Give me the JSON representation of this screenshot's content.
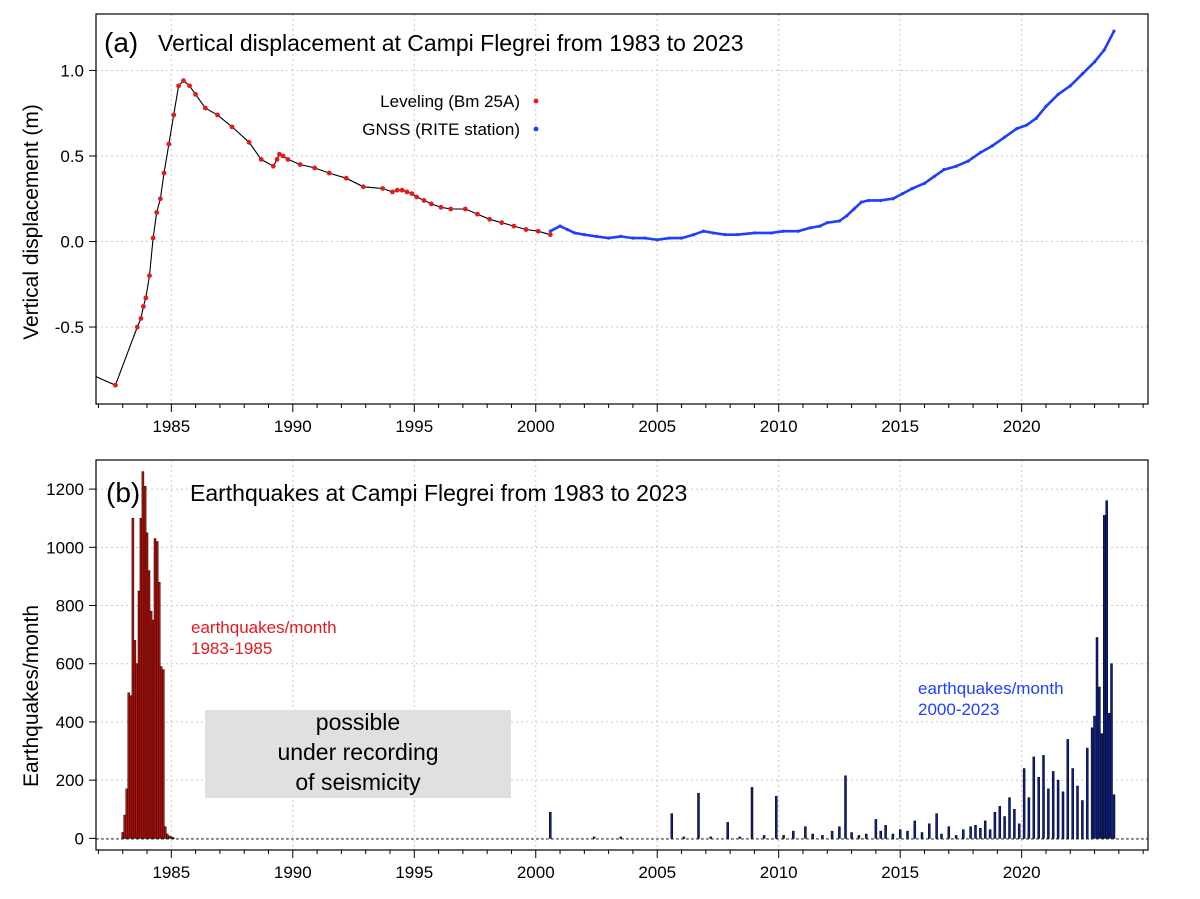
{
  "chart_data": [
    {
      "type": "line",
      "panel_letter": "(a)",
      "title": "Vertical displacement at Campi Flegrei from 1983 to 2023",
      "xlabel": "",
      "ylabel": "Vertical displacement (m)",
      "xlim": [
        1981.9,
        2025.2
      ],
      "ylim": [
        -0.95,
        1.33
      ],
      "x_ticks": [
        1985,
        1990,
        1995,
        2000,
        2005,
        2010,
        2015,
        2020
      ],
      "y_ticks": [
        -0.5,
        0.0,
        0.5,
        1.0
      ],
      "y_tick_labels": [
        "-0.5",
        "0.0",
        "0.5",
        "1.0"
      ],
      "grid": true,
      "legend_position": "top-center",
      "series": [
        {
          "name": "Leveling (Bm 25A)",
          "color": "#e41a1c",
          "marker": "dot",
          "connector_color": "#000000",
          "x": [
            1982.7,
            1983.6,
            1983.75,
            1983.85,
            1983.95,
            1984.1,
            1984.25,
            1984.4,
            1984.55,
            1984.7,
            1984.9,
            1985.1,
            1985.3,
            1985.5,
            1985.75,
            1986.0,
            1986.4,
            1986.9,
            1987.5,
            1988.2,
            1988.7,
            1989.2,
            1989.35,
            1989.45,
            1989.6,
            1989.8,
            1990.3,
            1990.9,
            1991.5,
            1992.2,
            1992.9,
            1993.7,
            1994.1,
            1994.3,
            1994.5,
            1994.7,
            1994.9,
            1995.1,
            1995.4,
            1995.7,
            1996.1,
            1996.5,
            1997.1,
            1997.6,
            1998.1,
            1998.6,
            1999.1,
            1999.6,
            2000.1,
            2000.6
          ],
          "y": [
            -0.84,
            -0.5,
            -0.45,
            -0.38,
            -0.33,
            -0.2,
            0.02,
            0.17,
            0.25,
            0.4,
            0.57,
            0.74,
            0.91,
            0.94,
            0.91,
            0.86,
            0.78,
            0.74,
            0.67,
            0.58,
            0.48,
            0.44,
            0.48,
            0.51,
            0.5,
            0.48,
            0.45,
            0.43,
            0.4,
            0.37,
            0.32,
            0.31,
            0.29,
            0.3,
            0.3,
            0.29,
            0.28,
            0.26,
            0.24,
            0.22,
            0.2,
            0.19,
            0.19,
            0.16,
            0.13,
            0.11,
            0.09,
            0.07,
            0.06,
            0.04
          ]
        },
        {
          "name": "GNSS (RITE station)",
          "color": "#1f3fff",
          "marker": "dot",
          "x": [
            2000.6,
            2001.0,
            2001.3,
            2001.6,
            2002.0,
            2002.5,
            2003.0,
            2003.5,
            2004.0,
            2004.5,
            2005.0,
            2005.5,
            2006.0,
            2006.5,
            2006.9,
            2007.3,
            2007.8,
            2008.3,
            2009.0,
            2009.7,
            2010.2,
            2010.8,
            2011.3,
            2011.7,
            2012.0,
            2012.5,
            2012.8,
            2013.1,
            2013.4,
            2013.7,
            2014.2,
            2014.7,
            2015.1,
            2015.5,
            2016.0,
            2016.4,
            2016.8,
            2017.3,
            2017.8,
            2018.3,
            2018.8,
            2019.3,
            2019.8,
            2020.2,
            2020.6,
            2021.0,
            2021.5,
            2022.0,
            2022.5,
            2023.0,
            2023.4,
            2023.8
          ],
          "y": [
            0.06,
            0.09,
            0.07,
            0.05,
            0.04,
            0.03,
            0.02,
            0.03,
            0.02,
            0.02,
            0.01,
            0.02,
            0.02,
            0.04,
            0.06,
            0.05,
            0.04,
            0.04,
            0.05,
            0.05,
            0.06,
            0.06,
            0.08,
            0.09,
            0.11,
            0.12,
            0.15,
            0.19,
            0.23,
            0.24,
            0.24,
            0.25,
            0.28,
            0.31,
            0.34,
            0.38,
            0.42,
            0.44,
            0.47,
            0.52,
            0.56,
            0.61,
            0.66,
            0.68,
            0.72,
            0.79,
            0.86,
            0.91,
            0.98,
            1.05,
            1.12,
            1.23
          ]
        }
      ]
    },
    {
      "type": "bar",
      "panel_letter": "(b)",
      "title": "Earthquakes at Campi Flegrei from 1983 to 2023",
      "xlabel": "",
      "ylabel": "Earthquakes/month",
      "xlim": [
        1981.9,
        2025.2
      ],
      "ylim": [
        -40,
        1300
      ],
      "x_ticks": [
        1985,
        1990,
        1995,
        2000,
        2005,
        2010,
        2015,
        2020
      ],
      "y_ticks": [
        0,
        200,
        400,
        600,
        800,
        1000,
        1200
      ],
      "grid": true,
      "annotations": {
        "red_label_line1": "earthquakes/month",
        "red_label_line2": "1983-1985",
        "blue_label_line1": "earthquakes/month",
        "blue_label_line2": "2000-2023",
        "box_line1": "possible",
        "box_line2": "under recording",
        "box_line3": "of seismicity"
      },
      "series": [
        {
          "name": "earthquakes/month 1983-1985",
          "color": "#c0130e",
          "bar_width_years": 0.083,
          "x": [
            1983.0,
            1983.08,
            1983.17,
            1983.25,
            1983.33,
            1983.42,
            1983.5,
            1983.58,
            1983.67,
            1983.75,
            1983.83,
            1983.92,
            1984.0,
            1984.08,
            1984.17,
            1984.25,
            1984.33,
            1984.42,
            1984.5,
            1984.58,
            1984.67,
            1984.75,
            1984.83,
            1984.92,
            1985.0,
            1985.08
          ],
          "values": [
            20,
            80,
            170,
            500,
            490,
            1100,
            680,
            600,
            850,
            1100,
            1260,
            1210,
            1050,
            920,
            780,
            750,
            1030,
            1020,
            880,
            590,
            580,
            40,
            15,
            8,
            5,
            3
          ]
        },
        {
          "name": "earthquakes/month 2000-2023",
          "color": "#0c1f8f",
          "bar_width_years": 0.083,
          "x": [
            2000.6,
            2002.4,
            2003.5,
            2005.6,
            2006.1,
            2006.7,
            2007.2,
            2007.9,
            2008.4,
            2008.9,
            2009.4,
            2009.9,
            2010.2,
            2010.6,
            2011.1,
            2011.4,
            2011.8,
            2012.2,
            2012.5,
            2012.75,
            2013.0,
            2013.3,
            2013.6,
            2014.0,
            2014.2,
            2014.4,
            2014.7,
            2015.0,
            2015.3,
            2015.6,
            2015.9,
            2016.2,
            2016.5,
            2016.7,
            2017.0,
            2017.3,
            2017.6,
            2017.9,
            2018.1,
            2018.3,
            2018.5,
            2018.7,
            2018.9,
            2019.1,
            2019.3,
            2019.5,
            2019.7,
            2019.9,
            2020.1,
            2020.3,
            2020.5,
            2020.7,
            2020.9,
            2021.1,
            2021.3,
            2021.5,
            2021.7,
            2021.9,
            2022.1,
            2022.3,
            2022.5,
            2022.7,
            2022.9,
            2023.0,
            2023.1,
            2023.2,
            2023.3,
            2023.4,
            2023.5,
            2023.6,
            2023.7,
            2023.8
          ],
          "values": [
            90,
            5,
            5,
            85,
            5,
            155,
            5,
            55,
            5,
            175,
            10,
            145,
            10,
            25,
            40,
            15,
            10,
            25,
            40,
            215,
            20,
            10,
            15,
            65,
            25,
            45,
            15,
            30,
            25,
            60,
            20,
            50,
            85,
            15,
            40,
            10,
            30,
            40,
            45,
            35,
            60,
            30,
            90,
            110,
            75,
            140,
            100,
            50,
            240,
            140,
            280,
            210,
            285,
            170,
            230,
            200,
            160,
            340,
            240,
            180,
            130,
            310,
            380,
            420,
            690,
            520,
            360,
            1110,
            1160,
            430,
            600,
            150
          ]
        }
      ]
    }
  ]
}
